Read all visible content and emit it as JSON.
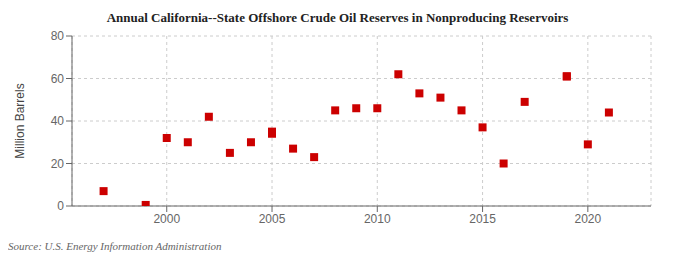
{
  "chart_data": {
    "type": "scatter",
    "title": "Annual California--State Offshore Crude Oil Reserves in Nonproducing Reservoirs",
    "y_label": "Million Barrels",
    "annotation": "Source: U.S. Energy Information Administration",
    "x": [
      1997,
      1999,
      2000,
      2001,
      2002,
      2003,
      2004,
      2005,
      2005,
      2006,
      2007,
      2008,
      2009,
      2010,
      2011,
      2012,
      2013,
      2014,
      2015,
      2016,
      2017,
      2019,
      2019,
      2020,
      2021
    ],
    "values": [
      7,
      0.5,
      32,
      30,
      42,
      25,
      30,
      35,
      34,
      27,
      23,
      45,
      46,
      46,
      62,
      53,
      51,
      45,
      37,
      20,
      49,
      61,
      61,
      29,
      44
    ],
    "color": "#cc0000",
    "marker": "square",
    "xlim": [
      1995.5,
      2023
    ],
    "xticks": [
      2000,
      2005,
      2010,
      2015,
      2020
    ],
    "ylim": [
      0,
      80
    ],
    "yticks": [
      0,
      20,
      40,
      60,
      80
    ],
    "grid": true
  }
}
